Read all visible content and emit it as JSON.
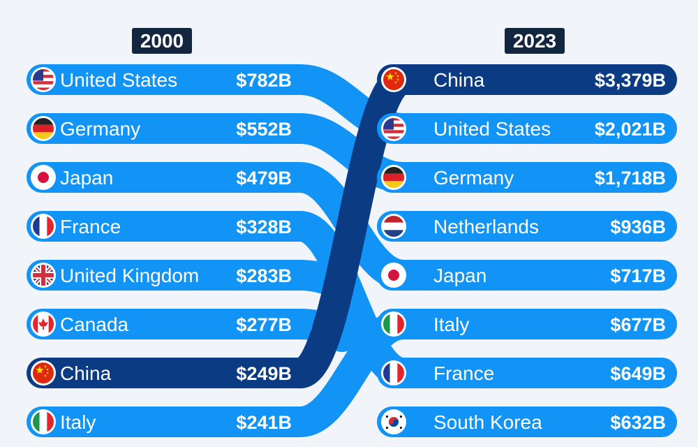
{
  "chart_data": {
    "type": "bump",
    "colors": {
      "highlight": "#0b3b82",
      "base": "#1194f5",
      "background": "#f1f5f9",
      "year_badge": "#12263f"
    },
    "years": [
      "2000",
      "2023"
    ],
    "ranking_2000": [
      {
        "country": "United States",
        "value": "$782B",
        "flag": "flag-us"
      },
      {
        "country": "Germany",
        "value": "$552B",
        "flag": "flag-de"
      },
      {
        "country": "Japan",
        "value": "$479B",
        "flag": "flag-jp"
      },
      {
        "country": "France",
        "value": "$328B",
        "flag": "flag-fr"
      },
      {
        "country": "United Kingdom",
        "value": "$283B",
        "flag": "flag-gb"
      },
      {
        "country": "Canada",
        "value": "$277B",
        "flag": "flag-ca"
      },
      {
        "country": "China",
        "value": "$249B",
        "flag": "flag-cn",
        "highlight": true
      },
      {
        "country": "Italy",
        "value": "$241B",
        "flag": "flag-it"
      }
    ],
    "ranking_2023": [
      {
        "country": "China",
        "value": "$3,379B",
        "flag": "flag-cn",
        "highlight": true
      },
      {
        "country": "United States",
        "value": "$2,021B",
        "flag": "flag-us"
      },
      {
        "country": "Germany",
        "value": "$1,718B",
        "flag": "flag-de"
      },
      {
        "country": "Netherlands",
        "value": "$936B",
        "flag": "flag-nl"
      },
      {
        "country": "Japan",
        "value": "$717B",
        "flag": "flag-jp"
      },
      {
        "country": "Italy",
        "value": "$677B",
        "flag": "flag-it"
      },
      {
        "country": "France",
        "value": "$649B",
        "flag": "flag-fr"
      },
      {
        "country": "South Korea",
        "value": "$632B",
        "flag": "flag-kr"
      }
    ]
  }
}
